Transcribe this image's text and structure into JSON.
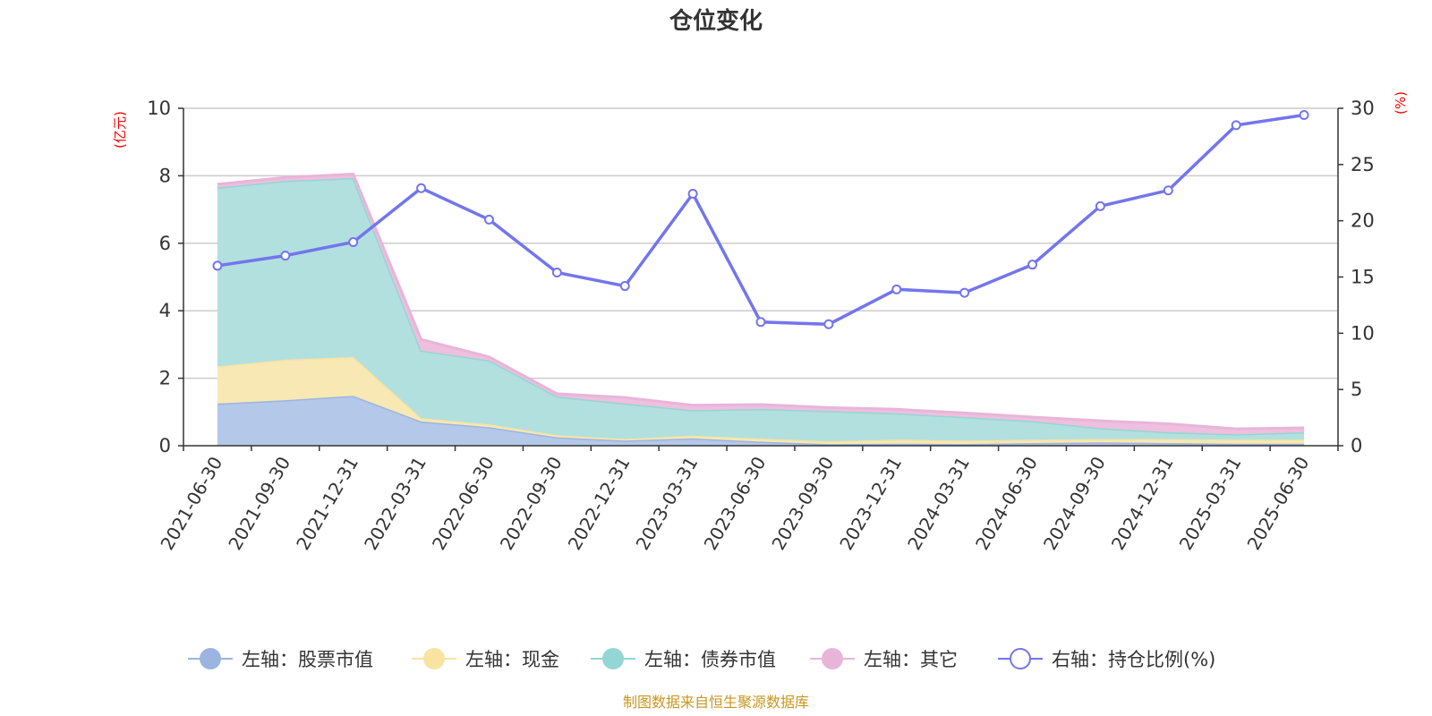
{
  "chart_data": {
    "type": "area",
    "title": "仓位变化",
    "left_axis_unit": "(亿元)",
    "right_axis_unit": "(%)",
    "categories": [
      "2021-06-30",
      "2021-09-30",
      "2021-12-31",
      "2022-03-31",
      "2022-06-30",
      "2022-09-30",
      "2022-12-31",
      "2023-03-31",
      "2023-06-30",
      "2023-09-30",
      "2023-12-31",
      "2024-03-31",
      "2024-06-30",
      "2024-09-30",
      "2024-12-31",
      "2025-03-31",
      "2025-06-30"
    ],
    "left_ylim": [
      0,
      10
    ],
    "left_ticks": [
      0,
      2,
      4,
      6,
      8,
      10
    ],
    "right_ylim": [
      0,
      30
    ],
    "right_ticks": [
      0,
      5,
      10,
      15,
      20,
      25,
      30
    ],
    "stacked": true,
    "grid": true,
    "legend_position": "bottom",
    "series": [
      {
        "name": "左轴：股票市值",
        "axis": "left",
        "color": "#9bb5e0",
        "fill": "#b4c8ea",
        "values": [
          1.25,
          1.35,
          1.48,
          0.72,
          0.55,
          0.25,
          0.15,
          0.22,
          0.12,
          0.05,
          0.06,
          0.05,
          0.08,
          0.1,
          0.08,
          0.06,
          0.06
        ]
      },
      {
        "name": "左轴：现金",
        "axis": "left",
        "color": "#f8e3a1",
        "fill": "#f8e8b4",
        "values": [
          1.1,
          1.2,
          1.15,
          0.1,
          0.08,
          0.06,
          0.05,
          0.08,
          0.09,
          0.08,
          0.12,
          0.1,
          0.1,
          0.1,
          0.12,
          0.12,
          0.12
        ]
      },
      {
        "name": "左轴：债券市值",
        "axis": "left",
        "color": "#94d6d3",
        "fill": "#b2e0df",
        "values": [
          5.3,
          5.3,
          5.3,
          2.0,
          1.9,
          1.15,
          1.05,
          0.75,
          0.88,
          0.9,
          0.78,
          0.7,
          0.55,
          0.32,
          0.2,
          0.16,
          0.22
        ]
      },
      {
        "name": "左轴：其它",
        "axis": "left",
        "color": "#e8b5d9",
        "fill": "#eebfdf",
        "values": [
          0.1,
          0.1,
          0.12,
          0.33,
          0.1,
          0.08,
          0.18,
          0.15,
          0.13,
          0.1,
          0.12,
          0.12,
          0.12,
          0.22,
          0.25,
          0.16,
          0.13
        ]
      },
      {
        "name": "右轴：持仓比例(%)",
        "axis": "right",
        "type": "line",
        "color": "#7375ee",
        "values": [
          16.0,
          16.9,
          18.1,
          22.9,
          20.1,
          15.4,
          14.2,
          22.4,
          11.0,
          10.8,
          13.9,
          13.6,
          16.1,
          21.3,
          22.7,
          28.5,
          29.4
        ]
      }
    ],
    "source_note": "制图数据来自恒生聚源数据库"
  }
}
